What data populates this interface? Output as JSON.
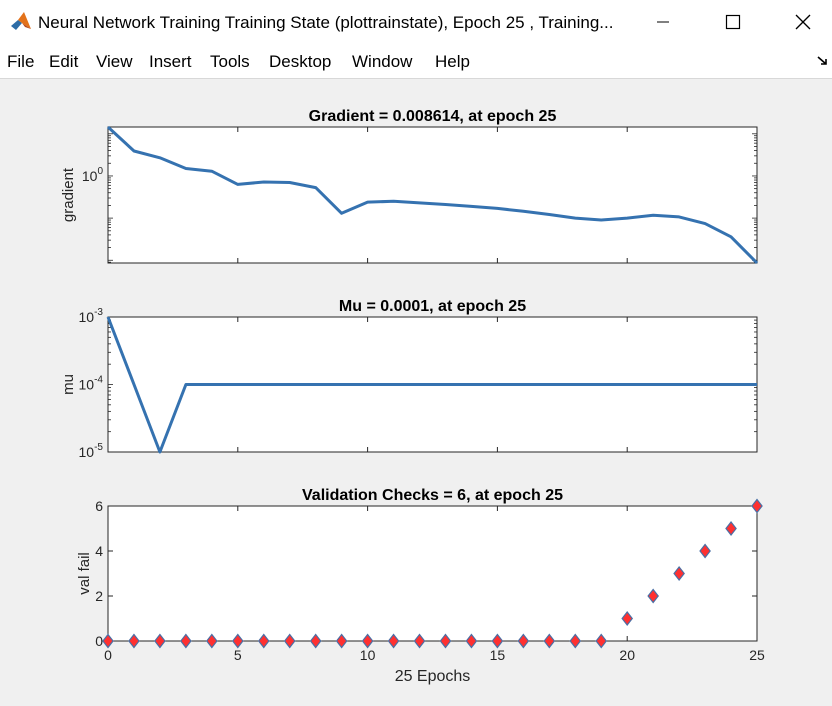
{
  "window": {
    "title": "Neural Network Training Training State (plottrainstate), Epoch 25 , Training..."
  },
  "menu": {
    "items": [
      "File",
      "Edit",
      "View",
      "Insert",
      "Tools",
      "Desktop",
      "Window",
      "Help"
    ]
  },
  "colors": {
    "line": "#3572b0",
    "marker_fill": "#ff3030",
    "marker_edge": "#4a6fa5",
    "axes_bg": "#ffffff",
    "figure_bg": "#f0f0f0"
  },
  "chart_data": [
    {
      "type": "line",
      "title": "Gradient = 0.008614, at epoch 25",
      "ylabel": "gradient",
      "xlabel": "",
      "yscale": "log",
      "xlim": [
        0,
        25
      ],
      "ylim": [
        0.008614,
        14.5
      ],
      "yticks": [
        {
          "value": 1,
          "base": "10",
          "exp": "0"
        }
      ],
      "x": [
        0,
        1,
        2,
        3,
        4,
        5,
        6,
        7,
        8,
        9,
        10,
        11,
        12,
        13,
        14,
        15,
        16,
        17,
        18,
        19,
        20,
        21,
        22,
        23,
        24,
        25
      ],
      "y": [
        14.5,
        3.9,
        2.7,
        1.5,
        1.3,
        0.63,
        0.72,
        0.7,
        0.53,
        0.13,
        0.24,
        0.25,
        0.23,
        0.21,
        0.19,
        0.17,
        0.145,
        0.122,
        0.1,
        0.09,
        0.1,
        0.117,
        0.107,
        0.074,
        0.036,
        0.008614
      ]
    },
    {
      "type": "line",
      "title": "Mu = 0.0001, at epoch 25",
      "ylabel": "mu",
      "xlabel": "",
      "yscale": "log",
      "xlim": [
        0,
        25
      ],
      "ylim": [
        1e-05,
        0.001
      ],
      "yticks": [
        {
          "value": 1e-05,
          "base": "10",
          "exp": "-5"
        },
        {
          "value": 0.0001,
          "base": "10",
          "exp": "-4"
        },
        {
          "value": 0.001,
          "base": "10",
          "exp": "-3"
        }
      ],
      "x": [
        0,
        1,
        2,
        3,
        4,
        5,
        6,
        7,
        8,
        9,
        10,
        11,
        12,
        13,
        14,
        15,
        16,
        17,
        18,
        19,
        20,
        21,
        22,
        23,
        24,
        25
      ],
      "y": [
        0.001,
        0.0001,
        1e-05,
        0.0001,
        0.0001,
        0.0001,
        0.0001,
        0.0001,
        0.0001,
        0.0001,
        0.0001,
        0.0001,
        0.0001,
        0.0001,
        0.0001,
        0.0001,
        0.0001,
        0.0001,
        0.0001,
        0.0001,
        0.0001,
        0.0001,
        0.0001,
        0.0001,
        0.0001,
        0.0001
      ]
    },
    {
      "type": "scatter",
      "title": "Validation Checks = 6, at epoch 25",
      "ylabel": "val fail",
      "xlabel": "25 Epochs",
      "yscale": "linear",
      "xlim": [
        0,
        25
      ],
      "ylim": [
        0,
        6
      ],
      "yticks": [
        0,
        2,
        4,
        6
      ],
      "xticks": [
        0,
        5,
        10,
        15,
        20,
        25
      ],
      "marker": "diamond",
      "x": [
        0,
        1,
        2,
        3,
        4,
        5,
        6,
        7,
        8,
        9,
        10,
        11,
        12,
        13,
        14,
        15,
        16,
        17,
        18,
        19,
        20,
        21,
        22,
        23,
        24,
        25
      ],
      "y": [
        0,
        0,
        0,
        0,
        0,
        0,
        0,
        0,
        0,
        0,
        0,
        0,
        0,
        0,
        0,
        0,
        0,
        0,
        0,
        0,
        1,
        2,
        3,
        4,
        5,
        6
      ]
    }
  ]
}
